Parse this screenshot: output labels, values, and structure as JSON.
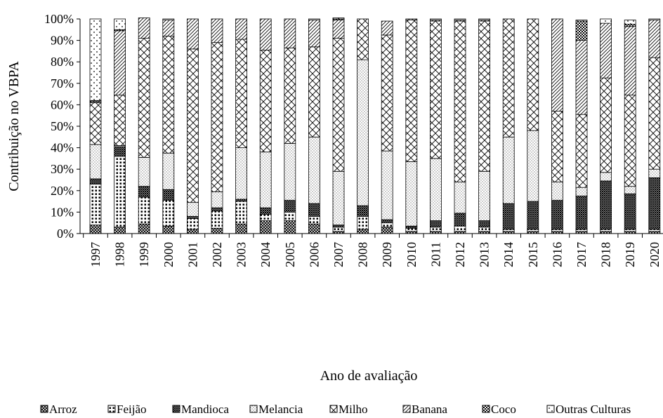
{
  "chart_data": {
    "type": "bar",
    "stacked": true,
    "xlabel": "Ano de avaliação",
    "ylabel": "Contribuição no VBPA",
    "ylim": [
      0,
      100
    ],
    "y_ticks": [
      "0%",
      "10%",
      "20%",
      "30%",
      "40%",
      "50%",
      "60%",
      "70%",
      "80%",
      "90%",
      "100%"
    ],
    "grid": false,
    "legend_position": "bottom",
    "categories": [
      "1997",
      "1998",
      "1999",
      "2000",
      "2001",
      "2002",
      "2003",
      "2004",
      "2005",
      "2006",
      "2007",
      "2008",
      "2009",
      "2010",
      "2011",
      "2012",
      "2013",
      "2014",
      "2015",
      "2016",
      "2017",
      "2018",
      "2019",
      "2020"
    ],
    "series": [
      {
        "name": "Arroz",
        "pattern": "crosshatch",
        "values": [
          4,
          3,
          4.5,
          3.5,
          2,
          2.5,
          4.5,
          6,
          6,
          4.5,
          1,
          2,
          3,
          1,
          1,
          1,
          1,
          1,
          1,
          1,
          1,
          1,
          1,
          1
        ]
      },
      {
        "name": "Feijão",
        "pattern": "dots",
        "values": [
          19,
          33,
          12.5,
          12,
          5,
          8,
          10.5,
          3,
          4,
          3.5,
          2,
          6,
          2,
          1.5,
          2,
          2.5,
          2,
          1,
          1,
          1,
          1,
          1,
          1,
          1
        ]
      },
      {
        "name": "Mandioca",
        "pattern": "dense-cross",
        "values": [
          2.5,
          4.5,
          5,
          5,
          1,
          1.5,
          1,
          3,
          5.5,
          6,
          1,
          5,
          1.5,
          1,
          3,
          6,
          3,
          12,
          13,
          13.5,
          15.5,
          22.5,
          16.5,
          24
        ]
      },
      {
        "name": "Melancia",
        "pattern": "fine-dots",
        "values": [
          16,
          0.5,
          13.5,
          17,
          6.5,
          7.5,
          24,
          26,
          26.5,
          31,
          25,
          68,
          32,
          30,
          29,
          14.5,
          23,
          31,
          33,
          8.5,
          4,
          4,
          3.5,
          4
        ]
      },
      {
        "name": "Milho",
        "pattern": "diamond",
        "values": [
          19.5,
          23.5,
          55.5,
          54.5,
          71.5,
          69.5,
          50.5,
          47.5,
          44.5,
          42,
          62,
          19,
          54,
          66,
          64,
          75,
          70,
          55,
          52,
          33,
          34,
          44,
          42.5,
          52
        ]
      },
      {
        "name": "Banana",
        "pattern": "diagonal",
        "values": [
          0.5,
          30,
          9.5,
          7.5,
          14,
          11,
          9.5,
          14.5,
          13.5,
          12.5,
          8.5,
          0,
          6.5,
          0.5,
          0.5,
          0.5,
          0.5,
          0,
          0,
          43,
          34.5,
          25.5,
          32,
          17.5
        ]
      },
      {
        "name": "Coco",
        "pattern": "checker",
        "values": [
          0.5,
          0.5,
          0,
          0,
          0,
          0,
          0,
          0,
          0,
          0,
          0.5,
          0,
          0,
          0,
          0,
          0,
          0,
          0,
          0,
          0,
          9,
          0,
          1,
          0
        ]
      },
      {
        "name": "Outras Culturas",
        "pattern": "sparse-dots",
        "values": [
          38,
          5,
          0,
          0.5,
          0,
          0,
          0,
          0,
          0,
          0.5,
          0.5,
          0,
          0,
          0,
          0.5,
          0.5,
          0.5,
          0,
          0,
          0,
          0.5,
          2,
          2,
          0.5
        ]
      }
    ]
  }
}
